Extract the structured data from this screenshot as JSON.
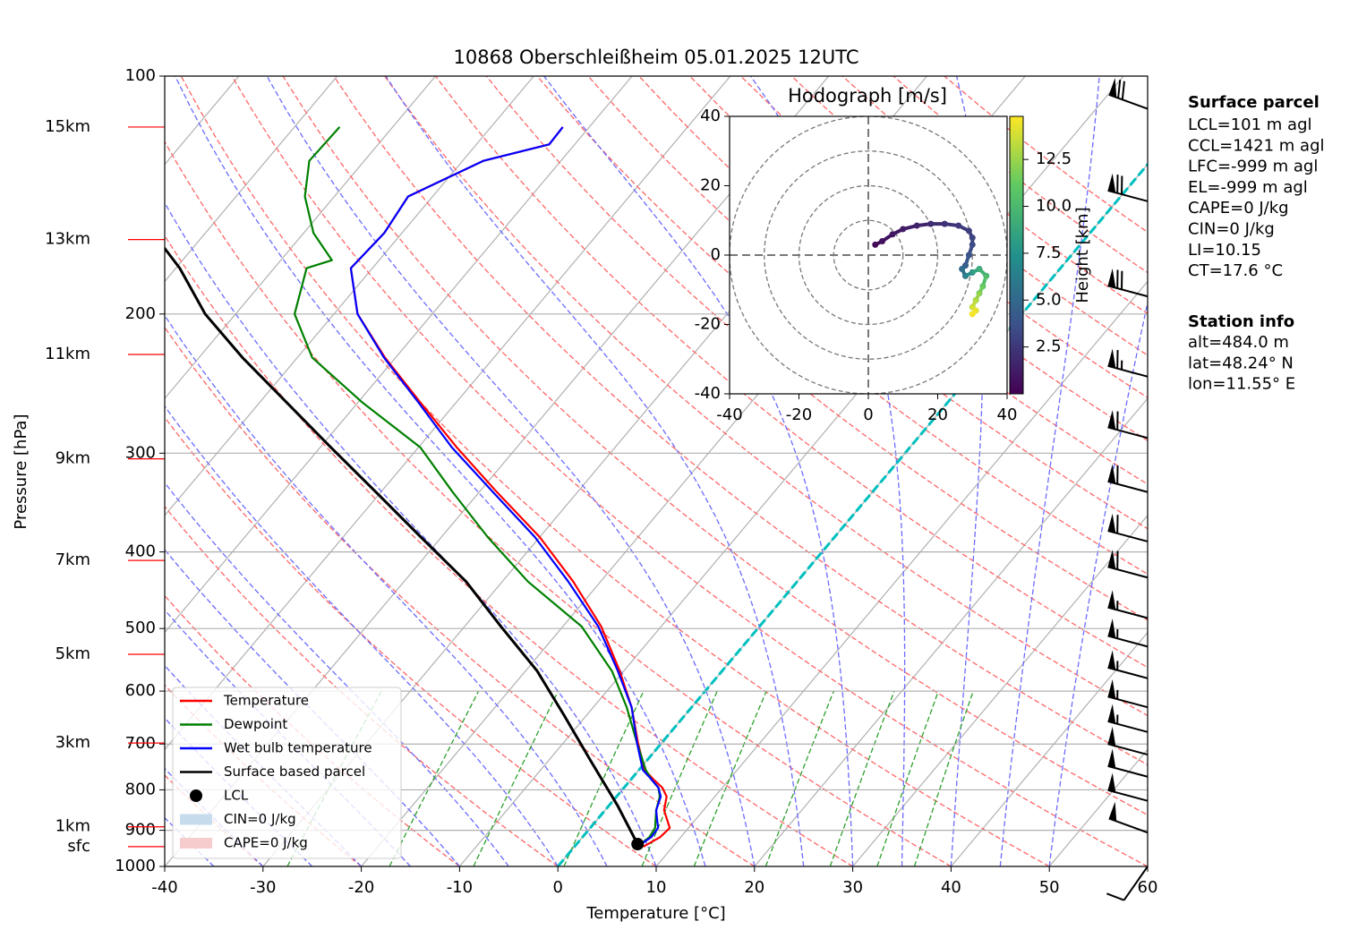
{
  "chart_data": [
    {
      "type": "skewt",
      "title": "10868 Oberschleißheim 05.01.2025 12UTC",
      "xlabel": "Temperature [°C]",
      "ylabel": "Pressure [hPa]",
      "xlim": [
        -40,
        60
      ],
      "xticks": [
        -40,
        -30,
        -20,
        -10,
        0,
        10,
        20,
        30,
        40,
        50,
        60
      ],
      "ylim": [
        1000,
        100
      ],
      "yscale": "log",
      "yticks": [
        100,
        200,
        300,
        400,
        500,
        600,
        700,
        800,
        900,
        1000
      ],
      "grid": true,
      "highlight_isotherm": 0,
      "highlight_color": "#00bfbf",
      "height_color": "#ff0000",
      "height_ticks": [
        {
          "value": 944,
          "label": "sfc"
        },
        {
          "value": 891,
          "label": "1km"
        },
        {
          "value": 698,
          "label": "3km"
        },
        {
          "value": 539,
          "label": "5km"
        },
        {
          "value": 410,
          "label": "7km"
        },
        {
          "value": 305,
          "label": "9km"
        },
        {
          "value": 225,
          "label": "11km"
        },
        {
          "value": 161,
          "label": "13km"
        },
        {
          "value": 116,
          "label": "15km"
        }
      ],
      "series": [
        {
          "name": "Temperature",
          "color": "#ff0000",
          "pressure": [
            944,
            918,
            894,
            849,
            816,
            795,
            775,
            755,
            698,
            629,
            566,
            497,
            436,
            383,
            336,
            295,
            259,
            227,
            200,
            175,
            158,
            142,
            128,
            122,
            116
          ],
          "values": [
            7.0,
            7.9,
            8.1,
            6.0,
            5.1,
            3.9,
            2.2,
            0.6,
            -2.4,
            -6.1,
            -10.4,
            -16.1,
            -22.8,
            -30.0,
            -38.2,
            -46.1,
            -53.6,
            -61.1,
            -67.6,
            -72.2,
            -71.8,
            -72.5,
            -67.9,
            -62.6,
            -62.7
          ]
        },
        {
          "name": "Dewpoint",
          "color": "#008000",
          "pressure": [
            944,
            918,
            894,
            849,
            816,
            795,
            775,
            755,
            698,
            629,
            566,
            497,
            436,
            383,
            336,
            295,
            259,
            227,
            200,
            175,
            171,
            158,
            142,
            128,
            116
          ],
          "values": [
            6.4,
            6.8,
            6.6,
            5.2,
            4.4,
            3.5,
            2.0,
            0.7,
            -2.5,
            -6.6,
            -11.2,
            -18.1,
            -27.4,
            -35.3,
            -42.7,
            -49.8,
            -59.5,
            -68.5,
            -74.0,
            -76.7,
            -74.8,
            -79.0,
            -83.0,
            -85.6,
            -85.4
          ]
        },
        {
          "name": "Wet bulb temperature",
          "color": "#0000ff",
          "pressure": [
            944,
            918,
            894,
            849,
            816,
            795,
            775,
            755,
            698,
            629,
            566,
            497,
            436,
            383,
            336,
            295,
            259,
            227,
            200,
            175,
            158,
            142,
            128,
            122,
            116
          ],
          "values": [
            6.4,
            7.0,
            6.9,
            5.2,
            4.5,
            3.5,
            2.0,
            0.4,
            -2.5,
            -6.1,
            -10.6,
            -16.4,
            -23.3,
            -30.5,
            -38.6,
            -46.6,
            -53.8,
            -61.2,
            -67.6,
            -72.2,
            -71.8,
            -72.5,
            -67.9,
            -62.6,
            -62.7
          ]
        },
        {
          "name": "Surface based parcel",
          "color": "#000000",
          "pressure": [
            937,
            838,
            735,
            645,
            566,
            497,
            436,
            383,
            336,
            295,
            259,
            227,
            200,
            175,
            165
          ],
          "values": [
            6.2,
            0.9,
            -5.7,
            -12.2,
            -18.8,
            -26.3,
            -33.7,
            -42.1,
            -50.5,
            -58.9,
            -67.2,
            -75.6,
            -83.1,
            -89.6,
            -92.9
          ]
        }
      ],
      "lcl": {
        "name": "LCL",
        "color": "#000000",
        "pressure": 937,
        "value": 6.2
      },
      "cin": {
        "name": "CIN=0 J/kg",
        "color": "#c6dbeb"
      },
      "cape": {
        "name": "CAPE=0 J/kg",
        "color": "#f6cccc"
      },
      "wind_barbs": {
        "pressure": [
          110,
          144,
          190,
          240,
          287,
          336,
          388,
          431,
          485,
          527,
          578,
          629,
          676,
          722,
          770,
          826,
          906,
          1000
        ],
        "speed": [
          70,
          70,
          70,
          65,
          60,
          60,
          60,
          60,
          55,
          55,
          55,
          55,
          55,
          50,
          50,
          50,
          50,
          10
        ],
        "direction": [
          290,
          285,
          285,
          285,
          285,
          285,
          285,
          285,
          285,
          285,
          285,
          285,
          285,
          285,
          285,
          285,
          290,
          215
        ]
      },
      "surface_parcel": {
        "title": "Surface parcel",
        "lines": [
          "LCL=101 m agl",
          "CCL=1421 m agl",
          "LFC=-999 m agl",
          "EL=-999 m agl",
          "CAPE=0 J/kg",
          "CIN=0 J/kg",
          "LI=10.15",
          "CT=17.6 °C"
        ]
      },
      "station_info": {
        "title": "Station info",
        "lines": [
          "alt=484.0 m",
          "lat=48.24° N",
          "lon=11.55° E"
        ]
      }
    },
    {
      "type": "hodograph",
      "title": "Hodograph [m/s]",
      "xlim": [
        -40,
        40
      ],
      "xticks": [
        -40,
        -20,
        0,
        20,
        40
      ],
      "ylim": [
        -40,
        40
      ],
      "yticks": [
        -40,
        -20,
        0,
        20,
        40
      ],
      "rings": [
        10,
        20,
        30,
        40
      ],
      "colorbar_label": "Height [km]",
      "clim": [
        0,
        14.8
      ],
      "colorbar_ticks": [
        2.5,
        {
          "value": 5,
          "label": "5.0"
        },
        7.5,
        {
          "value": 10,
          "label": "10.0"
        },
        12.5
      ],
      "u": [
        2,
        4,
        7,
        10,
        14,
        18,
        22,
        26,
        29,
        30,
        30,
        29,
        28,
        27,
        28,
        30,
        32,
        34,
        33,
        32,
        31,
        30,
        31,
        30
      ],
      "v": [
        3,
        4,
        6,
        7.5,
        8.5,
        9,
        9,
        8.5,
        7,
        5,
        3,
        0,
        -3,
        -4,
        -6,
        -5,
        -4,
        -6,
        -9,
        -11,
        -13,
        -15,
        -16,
        -17
      ],
      "height": [
        0.3,
        0.5,
        0.8,
        1,
        1.3,
        1.6,
        2,
        2.3,
        2.6,
        2.9,
        3.2,
        3.5,
        4,
        4.8,
        5.5,
        7,
        8.5,
        9.5,
        10.5,
        11.5,
        12.5,
        13.3,
        14,
        14.6
      ]
    }
  ]
}
